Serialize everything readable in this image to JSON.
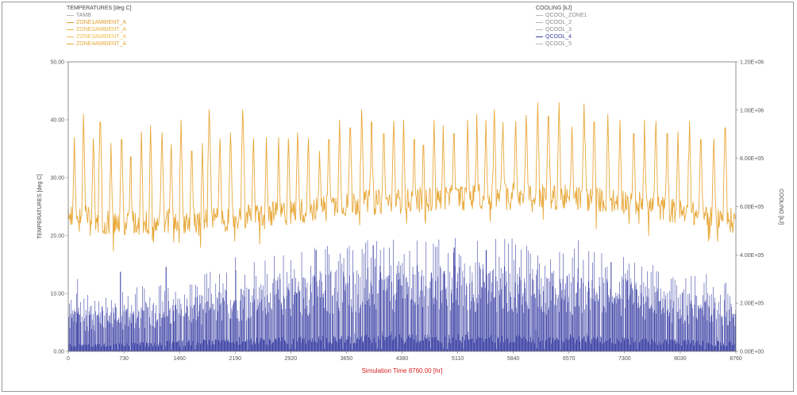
{
  "chart_data": {
    "type": "line",
    "title": "",
    "xlabel": "Simulation Time 8760.00 [hr]",
    "ylabel": "TEMPERATURES [deg C]",
    "y2label": "COOLING [kJ]",
    "xlim": [
      0,
      8760
    ],
    "ylim": [
      0,
      50
    ],
    "y2lim": [
      0,
      1200000
    ],
    "x_ticks": [
      "0",
      "730",
      "1460",
      "2190",
      "2920",
      "3650",
      "4380",
      "5110",
      "5840",
      "6570",
      "7300",
      "8030",
      "8760"
    ],
    "y_ticks": [
      "0.00",
      "10.00",
      "20.00",
      "30.00",
      "40.00",
      "50.00"
    ],
    "y2_ticks": [
      "0.00E+00",
      "2.00E+05",
      "4.00E+05",
      "6.00E+05",
      "8.00E+05",
      "1.00E+06",
      "1.20E+06"
    ],
    "grid": false,
    "legend_left": {
      "title": "TEMPERATURES [deg C]",
      "entries": [
        {
          "name": "TAMB",
          "color": "#b8b8b8"
        },
        {
          "name": "ZONE1AMBIENT_A",
          "color": "#e0a030"
        },
        {
          "name": "ZONE2AMBIENT_A",
          "color": "#e8b040"
        },
        {
          "name": "ZONE3AMBIENT_A",
          "color": "#f0c050"
        },
        {
          "name": "ZONE4AMBIENT_A",
          "color": "#e6a838"
        }
      ]
    },
    "legend_right": {
      "title": "COOLING [kJ]",
      "entries": [
        {
          "name": "QCOOL_ZONE1",
          "color": "#b8b8b8"
        },
        {
          "name": "QCOOL_2",
          "color": "#b8b8b8"
        },
        {
          "name": "QCOOL_3",
          "color": "#b8b8b8"
        },
        {
          "name": "QCOOL_4",
          "color": "#3b3f9e"
        },
        {
          "name": "QCOOL_5",
          "color": "#b8b8b8"
        }
      ]
    },
    "series": [
      {
        "axis": "left",
        "style": "line",
        "color": "#e8a83a",
        "baseline": [
          23.5,
          22.0,
          22.5,
          23.0,
          24.0,
          25.5,
          26.0,
          26.5,
          27.0,
          26.5,
          26.0,
          24.0,
          22.5
        ],
        "peaks": [
          {
            "x": 80,
            "y": 37
          },
          {
            "x": 200,
            "y": 41
          },
          {
            "x": 330,
            "y": 38
          },
          {
            "x": 420,
            "y": 42
          },
          {
            "x": 560,
            "y": 36
          },
          {
            "x": 700,
            "y": 39
          },
          {
            "x": 820,
            "y": 36
          },
          {
            "x": 960,
            "y": 38
          },
          {
            "x": 1080,
            "y": 39
          },
          {
            "x": 1230,
            "y": 39
          },
          {
            "x": 1350,
            "y": 37
          },
          {
            "x": 1480,
            "y": 40
          },
          {
            "x": 1620,
            "y": 37
          },
          {
            "x": 1760,
            "y": 36
          },
          {
            "x": 1850,
            "y": 43
          },
          {
            "x": 1990,
            "y": 38
          },
          {
            "x": 2130,
            "y": 39
          },
          {
            "x": 2290,
            "y": 43
          },
          {
            "x": 2430,
            "y": 38
          },
          {
            "x": 2600,
            "y": 37
          },
          {
            "x": 2760,
            "y": 37
          },
          {
            "x": 2890,
            "y": 38
          },
          {
            "x": 3010,
            "y": 39
          },
          {
            "x": 3150,
            "y": 38
          },
          {
            "x": 3300,
            "y": 37
          },
          {
            "x": 3420,
            "y": 39
          },
          {
            "x": 3560,
            "y": 40
          },
          {
            "x": 3700,
            "y": 41
          },
          {
            "x": 3850,
            "y": 43
          },
          {
            "x": 3980,
            "y": 42
          },
          {
            "x": 4140,
            "y": 40
          },
          {
            "x": 4270,
            "y": 41
          },
          {
            "x": 4400,
            "y": 40
          },
          {
            "x": 4540,
            "y": 39
          },
          {
            "x": 4660,
            "y": 38
          },
          {
            "x": 4800,
            "y": 40
          },
          {
            "x": 4920,
            "y": 39
          },
          {
            "x": 5060,
            "y": 40
          },
          {
            "x": 5240,
            "y": 40
          },
          {
            "x": 5360,
            "y": 41
          },
          {
            "x": 5480,
            "y": 40
          },
          {
            "x": 5590,
            "y": 43
          },
          {
            "x": 5700,
            "y": 42
          },
          {
            "x": 5870,
            "y": 41
          },
          {
            "x": 6010,
            "y": 42
          },
          {
            "x": 6160,
            "y": 43
          },
          {
            "x": 6300,
            "y": 43
          },
          {
            "x": 6440,
            "y": 43
          },
          {
            "x": 6610,
            "y": 40
          },
          {
            "x": 6770,
            "y": 44
          },
          {
            "x": 6900,
            "y": 42
          },
          {
            "x": 7080,
            "y": 41
          },
          {
            "x": 7240,
            "y": 40
          },
          {
            "x": 7420,
            "y": 40
          },
          {
            "x": 7560,
            "y": 40
          },
          {
            "x": 7710,
            "y": 41
          },
          {
            "x": 7860,
            "y": 40
          },
          {
            "x": 8000,
            "y": 38
          },
          {
            "x": 8150,
            "y": 41
          },
          {
            "x": 8300,
            "y": 39
          },
          {
            "x": 8470,
            "y": 38
          },
          {
            "x": 8620,
            "y": 41
          }
        ]
      },
      {
        "axis": "right",
        "style": "bars",
        "color": "#3e44a6",
        "envelope": [
          240000,
          260000,
          300000,
          360000,
          420000,
          460000,
          480000,
          480000,
          470000,
          440000,
          400000,
          330000,
          280000
        ],
        "peaks": [
          {
            "x": 120,
            "y": 300000
          },
          {
            "x": 680,
            "y": 330000
          },
          {
            "x": 1280,
            "y": 350000
          },
          {
            "x": 2190,
            "y": 390000
          },
          {
            "x": 3250,
            "y": 420000
          },
          {
            "x": 4000,
            "y": 440000
          },
          {
            "x": 5060,
            "y": 430000
          },
          {
            "x": 5480,
            "y": 420000
          },
          {
            "x": 6690,
            "y": 460000
          },
          {
            "x": 7120,
            "y": 370000
          },
          {
            "x": 8370,
            "y": 320000
          },
          {
            "x": 8610,
            "y": 280000
          }
        ]
      }
    ]
  }
}
